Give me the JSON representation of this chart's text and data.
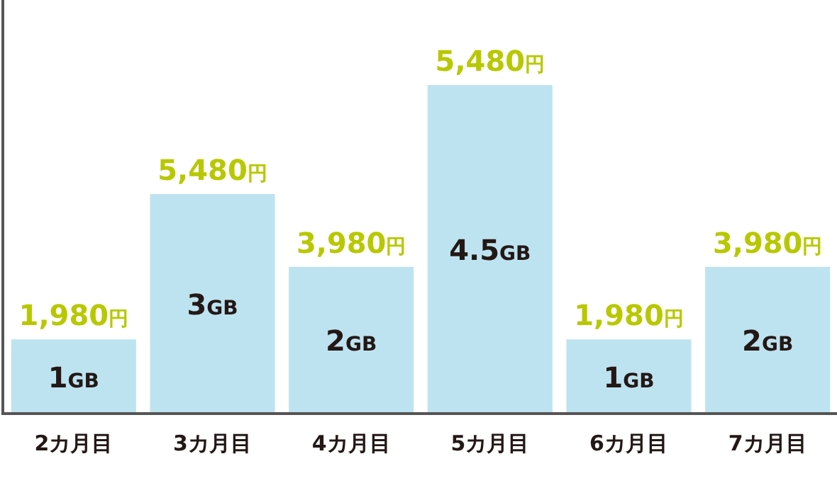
{
  "chart_data": {
    "type": "bar",
    "categories": [
      "2カ月目",
      "3カ月目",
      "4カ月目",
      "5カ月目",
      "6カ月目",
      "7カ月目"
    ],
    "values": [
      1,
      3,
      2,
      4.5,
      1,
      2
    ],
    "color": "#bee3f0",
    "value_labels": [
      "1GB",
      "3GB",
      "2GB",
      "4.5GB",
      "1GB",
      "2GB"
    ],
    "annotations": [
      {
        "text": "1,980円",
        "x": "2カ月目",
        "y": 1
      },
      {
        "text": "5,480円",
        "x": "3カ月目",
        "y": 3
      },
      {
        "text": "3,980円",
        "x": "4カ月目",
        "y": 2
      },
      {
        "text": "5,480円",
        "x": "5カ月目",
        "y": 4.5
      },
      {
        "text": "1,980円",
        "x": "6カ月目",
        "y": 1
      },
      {
        "text": "3,980円",
        "x": "7カ月目",
        "y": 2
      }
    ],
    "grid": false,
    "legend": false
  }
}
